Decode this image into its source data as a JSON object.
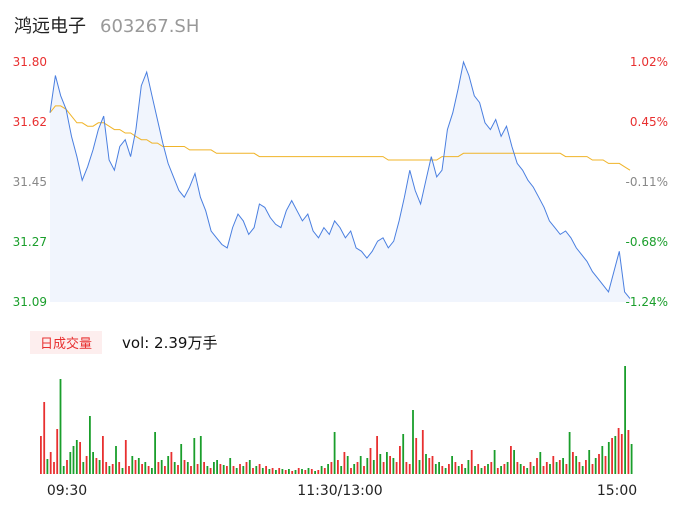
{
  "header": {
    "name": "鸿远电子",
    "code": "603267.SH"
  },
  "volume_header": {
    "tab_label": "日成交量",
    "vol_label": "vol: 2.39万手"
  },
  "colors": {
    "up": "#e83030",
    "down": "#1a9e2b",
    "neutral": "#888888",
    "price_line": "#4a7fe0",
    "avg_line": "#f0b429"
  },
  "chart_data": [
    {
      "type": "line",
      "title": "",
      "x_tick_labels": [
        "09:30",
        "11:30/13:00",
        "15:00"
      ],
      "y_ticks_left": [
        "31.80",
        "31.62",
        "31.45",
        "31.27",
        "31.09"
      ],
      "y_ticks_right": [
        "1.02%",
        "0.45%",
        "-0.11%",
        "-0.68%",
        "-1.24%"
      ],
      "ylim": [
        31.09,
        31.8
      ],
      "grid": false,
      "series": [
        {
          "role": "price",
          "values": [
            31.65,
            31.76,
            31.7,
            31.66,
            31.58,
            31.52,
            31.45,
            31.49,
            31.54,
            31.6,
            31.64,
            31.51,
            31.48,
            31.55,
            31.57,
            31.52,
            31.6,
            31.73,
            31.77,
            31.7,
            31.63,
            31.56,
            31.5,
            31.46,
            31.42,
            31.4,
            31.43,
            31.47,
            31.4,
            31.36,
            31.3,
            31.28,
            31.26,
            31.25,
            31.31,
            31.35,
            31.33,
            31.29,
            31.31,
            31.38,
            31.37,
            31.34,
            31.32,
            31.31,
            31.36,
            31.39,
            31.36,
            31.33,
            31.35,
            31.3,
            31.28,
            31.31,
            31.29,
            31.33,
            31.31,
            31.28,
            31.3,
            31.25,
            31.24,
            31.22,
            31.24,
            31.27,
            31.28,
            31.25,
            31.27,
            31.33,
            31.4,
            31.48,
            31.42,
            31.38,
            31.45,
            31.52,
            31.46,
            31.48,
            31.6,
            31.65,
            31.72,
            31.8,
            31.76,
            31.7,
            31.68,
            31.62,
            31.6,
            31.63,
            31.58,
            31.61,
            31.55,
            31.5,
            31.48,
            31.45,
            31.43,
            31.4,
            31.37,
            31.33,
            31.31,
            31.29,
            31.3,
            31.28,
            31.25,
            31.23,
            31.21,
            31.18,
            31.16,
            31.14,
            31.12,
            31.18,
            31.24,
            31.12,
            31.1
          ]
        },
        {
          "role": "average",
          "values": [
            31.65,
            31.67,
            31.67,
            31.66,
            31.64,
            31.62,
            31.62,
            31.61,
            31.61,
            31.62,
            31.62,
            31.61,
            31.6,
            31.6,
            31.59,
            31.59,
            31.58,
            31.57,
            31.57,
            31.56,
            31.56,
            31.55,
            31.55,
            31.55,
            31.55,
            31.55,
            31.54,
            31.54,
            31.54,
            31.54,
            31.54,
            31.53,
            31.53,
            31.53,
            31.53,
            31.53,
            31.53,
            31.53,
            31.53,
            31.52,
            31.52,
            31.52,
            31.52,
            31.52,
            31.52,
            31.52,
            31.52,
            31.52,
            31.52,
            31.52,
            31.52,
            31.52,
            31.52,
            31.52,
            31.52,
            31.52,
            31.52,
            31.52,
            31.52,
            31.52,
            31.52,
            31.52,
            31.52,
            31.51,
            31.51,
            31.51,
            31.51,
            31.51,
            31.51,
            31.51,
            31.51,
            31.51,
            31.51,
            31.52,
            31.52,
            31.52,
            31.52,
            31.53,
            31.53,
            31.53,
            31.53,
            31.53,
            31.53,
            31.53,
            31.53,
            31.53,
            31.53,
            31.53,
            31.53,
            31.53,
            31.53,
            31.53,
            31.53,
            31.53,
            31.53,
            31.53,
            31.52,
            31.52,
            31.52,
            31.52,
            31.52,
            31.51,
            31.51,
            31.51,
            31.5,
            31.5,
            31.5,
            31.49,
            31.48
          ]
        }
      ]
    },
    {
      "type": "bar",
      "title": "",
      "ylim": [
        0,
        110
      ],
      "values": [
        38,
        72,
        15,
        22,
        12,
        45,
        95,
        8,
        14,
        22,
        28,
        34,
        32,
        12,
        18,
        58,
        22,
        16,
        14,
        38,
        12,
        8,
        10,
        28,
        12,
        6,
        34,
        8,
        18,
        14,
        16,
        10,
        12,
        8,
        6,
        42,
        12,
        14,
        8,
        18,
        22,
        12,
        9,
        30,
        14,
        12,
        8,
        36,
        10,
        38,
        12,
        8,
        6,
        12,
        14,
        10,
        9,
        8,
        16,
        8,
        6,
        10,
        8,
        12,
        14,
        6,
        8,
        10,
        6,
        8,
        5,
        6,
        4,
        6,
        5,
        4,
        5,
        3,
        4,
        6,
        5,
        4,
        6,
        5,
        3,
        4,
        8,
        6,
        10,
        12,
        42,
        14,
        8,
        22,
        18,
        6,
        10,
        12,
        18,
        8,
        16,
        26,
        14,
        38,
        20,
        12,
        22,
        18,
        16,
        12,
        28,
        40,
        12,
        10,
        64,
        36,
        14,
        44,
        20,
        16,
        18,
        10,
        12,
        8,
        6,
        10,
        18,
        12,
        8,
        10,
        6,
        14,
        24,
        8,
        10,
        6,
        8,
        10,
        12,
        24,
        6,
        8,
        10,
        12,
        28,
        24,
        12,
        10,
        8,
        6,
        12,
        8,
        16,
        22,
        8,
        12,
        10,
        18,
        12,
        14,
        16,
        10,
        42,
        22,
        18,
        12,
        8,
        14,
        24,
        10,
        16,
        20,
        28,
        18,
        32,
        36,
        38,
        46,
        40,
        108,
        44,
        30
      ],
      "colors": [
        "up",
        "up",
        "down",
        "up",
        "up",
        "up",
        "down",
        "down",
        "up",
        "down",
        "down",
        "down",
        "up",
        "down",
        "up",
        "down",
        "down",
        "up",
        "down",
        "up",
        "up",
        "down",
        "up",
        "down",
        "up",
        "down",
        "up",
        "up",
        "down",
        "up",
        "down",
        "up",
        "down",
        "up",
        "down",
        "down",
        "up",
        "down",
        "up",
        "down",
        "up",
        "down",
        "up",
        "down",
        "up",
        "down",
        "up",
        "down",
        "up",
        "down",
        "up",
        "down",
        "up",
        "down",
        "down",
        "up",
        "down",
        "up",
        "down",
        "up",
        "down",
        "up",
        "down",
        "up",
        "down",
        "up",
        "down",
        "up",
        "down",
        "up",
        "down",
        "up",
        "down",
        "up",
        "down",
        "up",
        "down",
        "up",
        "down",
        "up",
        "down",
        "up",
        "down",
        "up",
        "down",
        "up",
        "down",
        "up",
        "down",
        "up",
        "down",
        "up",
        "down",
        "up",
        "down",
        "up",
        "down",
        "up",
        "down",
        "up",
        "down",
        "up",
        "down",
        "up",
        "down",
        "up",
        "down",
        "up",
        "down",
        "up",
        "up",
        "down",
        "up",
        "up",
        "down",
        "up",
        "down",
        "up",
        "down",
        "up",
        "up",
        "down",
        "down",
        "up",
        "down",
        "up",
        "down",
        "up",
        "down",
        "up",
        "down",
        "down",
        "up",
        "down",
        "up",
        "down",
        "up",
        "down",
        "up",
        "down",
        "up",
        "down",
        "up",
        "down",
        "up",
        "down",
        "up",
        "down",
        "up",
        "down",
        "up",
        "down",
        "up",
        "down",
        "up",
        "up",
        "down",
        "up",
        "down",
        "up",
        "down",
        "up",
        "down",
        "up",
        "down",
        "up",
        "down",
        "up",
        "down",
        "up",
        "down",
        "up",
        "down",
        "up",
        "down",
        "up",
        "down",
        "up",
        "up",
        "down",
        "up",
        "down",
        "up",
        "down",
        "down"
      ]
    }
  ]
}
